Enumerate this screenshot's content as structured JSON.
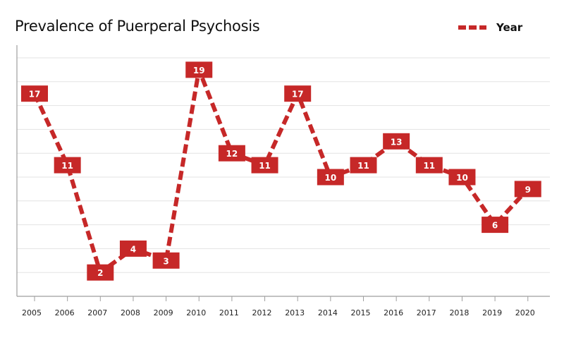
{
  "chart_data": {
    "type": "line",
    "title": "Prevalence of Puerperal Psychosis",
    "categories": [
      "2005",
      "2006",
      "2007",
      "2008",
      "2009",
      "2010",
      "2011",
      "2012",
      "2013",
      "2014",
      "2015",
      "2016",
      "2017",
      "2018",
      "2019",
      "2020"
    ],
    "series": [
      {
        "name": "Year",
        "values": [
          17,
          11,
          2,
          4,
          3,
          19,
          12,
          11,
          17,
          10,
          11,
          13,
          11,
          10,
          6,
          9
        ],
        "color": "#c62828",
        "line_style": "dashed",
        "data_labels": true
      }
    ],
    "xlabel": "",
    "ylabel": "",
    "ylim": [
      0,
      21
    ],
    "y_ticks_visible": false,
    "grid": "horizontal",
    "legend_position": "top-right"
  }
}
